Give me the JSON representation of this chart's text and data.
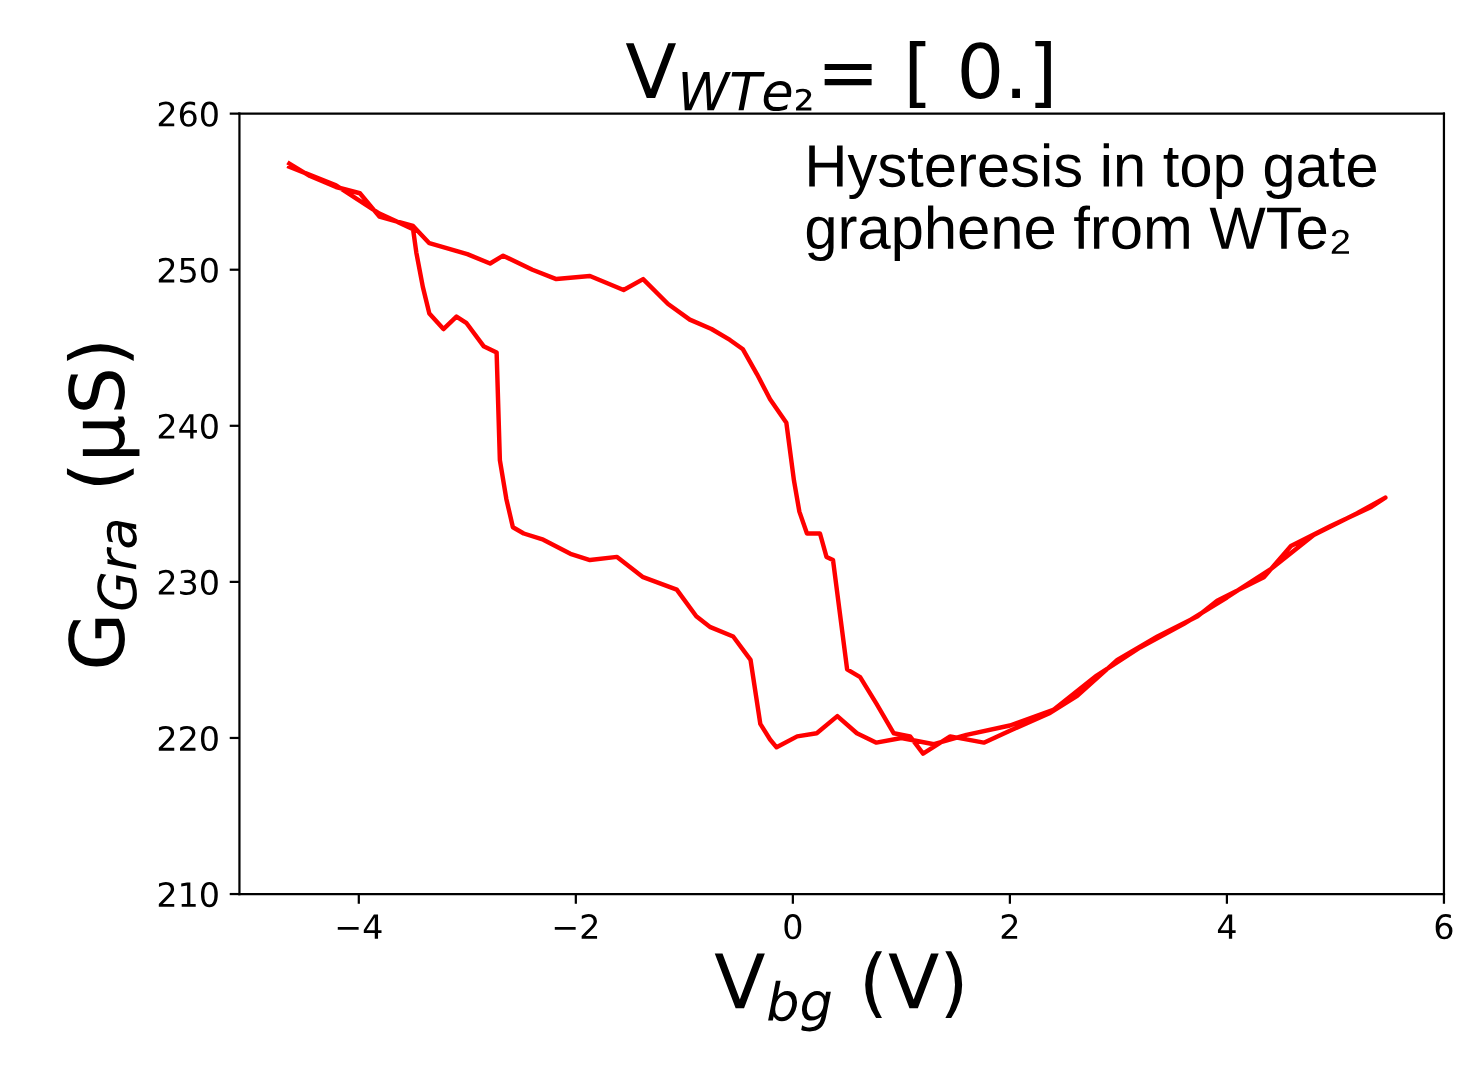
{
  "chart_data": {
    "type": "line",
    "title": "V$_{WTe₂}$= [ 0.]",
    "xlabel": "V$_{bg}$ (V)",
    "ylabel": "G$_{Gra}$ (μS)",
    "annotations": [
      "Hysteresis in top gate\ngraphene from WTe₂"
    ],
    "series": [
      {
        "color": "#ff0000",
        "x": [
          -4.64,
          -4.45,
          -4.21,
          -3.99,
          -3.81,
          -3.5,
          -3.35,
          -3.0,
          -2.79,
          -2.67,
          -2.4,
          -2.18,
          -1.87,
          -1.56,
          -1.38,
          -1.15,
          -0.95,
          -0.75,
          -0.58,
          -0.46,
          -0.33,
          -0.21,
          -0.06,
          0.01,
          0.06,
          0.13,
          0.25,
          0.31,
          0.37,
          0.5,
          0.62,
          0.77,
          0.93,
          1.08,
          1.2,
          1.45,
          1.76,
          2.01,
          2.37,
          2.62,
          2.99,
          3.36,
          3.73,
          3.91,
          4.34,
          4.59,
          4.96,
          5.33,
          5.46,
          5.2,
          4.8,
          4.4,
          4.0,
          3.6,
          3.2,
          2.8,
          2.4,
          2.0,
          1.6,
          1.3,
          1.0,
          0.77,
          0.59,
          0.41,
          0.22,
          0.04,
          -0.15,
          -0.21,
          -0.3,
          -0.39,
          -0.55,
          -0.76,
          -0.89,
          -1.07,
          -1.38,
          -1.62,
          -1.87,
          -2.05,
          -2.3,
          -2.48,
          -2.58,
          -2.64,
          -2.7,
          -2.73,
          -2.85,
          -3.01,
          -3.1,
          -3.22,
          -3.35,
          -3.41,
          -3.47,
          -3.5,
          -3.81,
          -4.21,
          -4.64
        ],
        "values": [
          256.8,
          256.0,
          255.3,
          254.9,
          253.4,
          252.8,
          251.7,
          251.0,
          250.4,
          250.9,
          250.0,
          249.4,
          249.6,
          248.7,
          249.4,
          247.8,
          246.8,
          246.2,
          245.5,
          244.9,
          243.3,
          241.7,
          240.2,
          236.5,
          234.5,
          233.1,
          233.1,
          231.6,
          231.4,
          224.4,
          223.9,
          222.2,
          220.3,
          220.1,
          219.0,
          220.1,
          219.7,
          220.5,
          221.6,
          222.7,
          225.0,
          226.5,
          227.8,
          228.8,
          230.3,
          232.3,
          233.6,
          234.8,
          235.4,
          234.4,
          233.0,
          230.8,
          229.0,
          227.3,
          225.8,
          224.0,
          221.8,
          220.8,
          220.2,
          219.6,
          220.0,
          219.7,
          220.3,
          221.4,
          220.3,
          220.1,
          219.4,
          219.9,
          220.9,
          225.0,
          226.5,
          227.1,
          227.8,
          229.5,
          230.3,
          231.6,
          231.4,
          231.8,
          232.7,
          233.1,
          233.5,
          235.3,
          237.8,
          244.7,
          245.1,
          246.6,
          247.0,
          246.2,
          247.2,
          248.9,
          251.1,
          252.6,
          253.6,
          255.4,
          256.6
        ]
      }
    ],
    "xlim": [
      -5.1,
      6.0
    ],
    "ylim": [
      210,
      260
    ],
    "xticks": [
      {
        "value": -4,
        "label": "−4"
      },
      {
        "value": -2,
        "label": "−2"
      },
      0,
      2,
      4,
      6
    ],
    "yticks": [
      210,
      220,
      230,
      240,
      250,
      260
    ],
    "marker": "none",
    "line_style": "solid"
  }
}
